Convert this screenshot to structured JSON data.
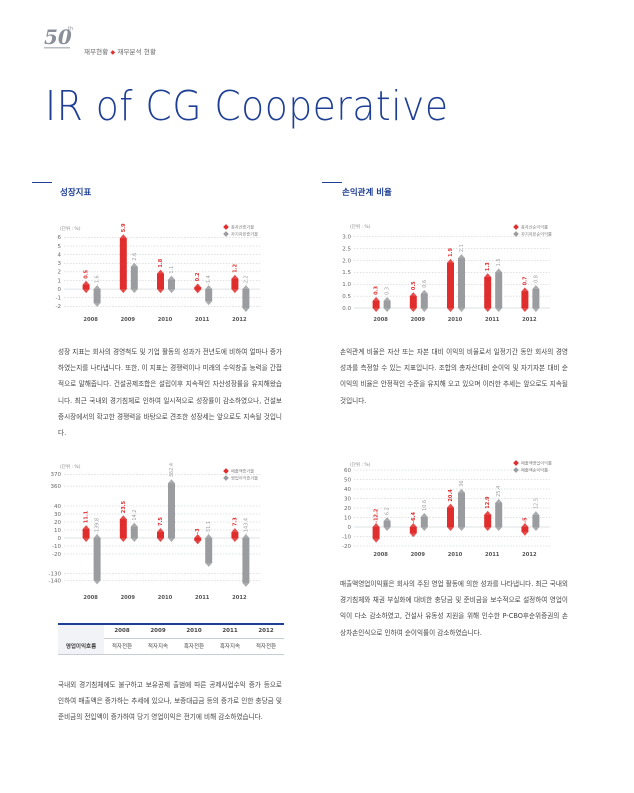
{
  "header": {
    "logo_text": "50th",
    "breadcrumb_left": "재무현황",
    "breadcrumb_right": "재무분석 현황"
  },
  "title": "IR of CG Cooperative",
  "sections": {
    "growth": {
      "title": "성장지표",
      "body": "성장 지표는 회사의 경영척도 및 기업 활동의 성과가 전년도에 비하여 얼마나 증가하였는지를 나타냅니다. 또한, 이 지표는 경쟁력이나 미래의 수익창출 능력을 간접적으로 말해줍니다. 건설공제조합은 설립이후 지속적인 자산성장률을 유지해왔습니다. 최근 국내외 경기침체로 인하여 일시적으로 성장률이 감소하였으나, 건설보증시장에서의 확고한 경쟁력을 바탕으로 견조한 성장세는 앞으로도 지속될 것입니다."
    },
    "profit": {
      "title": "손익관계 비율",
      "body": "손익관계 비율은 자산 또는 자본 대비 이익의 비율로서 일정기간 동안 회사의 경영성과를 측정할 수 있는 지표입니다. 조합의 총자산대비 순이익 및 자기자본 대비 순이익의 비율은 안정적인 수준을 유지해 오고 있으며 이러한 추세는 앞으로도 지속될 것입니다."
    },
    "sales_text": "국내외 경기침체에도 불구하고 보유공제 출범에 따른 공제사업수익 증가 등으로 인하여 매출액은 증가하는 추세에 있으나, 보증대급금 등의 증가로 인한 충당금 및 준비금의 전입액이 증가하여 당기 영업이익은 전기에 비해 감소하였습니다.",
    "margin_text": "매출액영업이익률은 회사의 주된 영업 활동에 의한 성과를 나타냅니다. 최근 국내외 경기침체와 채권 부실화에 대비한 충당금 및 준비금을 보수적으로 설정하여 영업이익이 다소 감소하였고, 건설사 유동성 지원을 위해 인수한 P-CBO후순위증권의 손상차손인식으로 인하여 순이익률이 감소하였습니다."
  },
  "op_table": {
    "row_label": "영업이익호름",
    "years": [
      "2008",
      "2009",
      "2010",
      "2011",
      "2012"
    ],
    "values": [
      "적자전환",
      "적자지속",
      "흑자전환",
      "흑자지속",
      "적자전환"
    ]
  },
  "colors": {
    "red": "#e02d2d",
    "gray": "#9a9c9f",
    "blue": "#1f3f95"
  },
  "chart_data": [
    {
      "type": "bar",
      "id": "growth",
      "title": "",
      "unit": "(단위 : %)",
      "categories": [
        "2008",
        "2009",
        "2010",
        "2011",
        "2012"
      ],
      "series": [
        {
          "name": "총자산증가율",
          "values": [
            0.5,
            5.9,
            1.8,
            0.2,
            1.2
          ]
        },
        {
          "name": "자기자본증가율",
          "values": [
            -1.6,
            2.6,
            1.1,
            -1.4,
            -2.2
          ]
        }
      ],
      "yticks": [
        6,
        5,
        4,
        3,
        2,
        1,
        0,
        -1,
        -2
      ],
      "ylim": [
        -2.2,
        6.4
      ]
    },
    {
      "type": "bar",
      "id": "profit",
      "title": "",
      "unit": "(단위 : %)",
      "categories": [
        "2008",
        "2009",
        "2010",
        "2011",
        "2012"
      ],
      "series": [
        {
          "name": "총자산순이익률",
          "values": [
            0.3,
            0.5,
            1.9,
            1.3,
            0.7
          ]
        },
        {
          "name": "자기자본순이익률",
          "values": [
            0.3,
            0.6,
            2.1,
            1.5,
            0.8
          ]
        }
      ],
      "yticks": [
        "3.0",
        "2.5",
        "2.0",
        "1.5",
        "1.0",
        "0.5",
        "0.0"
      ],
      "ylim": [
        0,
        3.2
      ]
    },
    {
      "type": "bar",
      "id": "sales",
      "title": "",
      "unit": "(단위 : %)",
      "categories": [
        "2008",
        "2009",
        "2010",
        "2011",
        "2012"
      ],
      "series": [
        {
          "name": "매출액증가율",
          "values": [
            11.1,
            23.5,
            7.5,
            -3.0,
            7.3
          ]
        },
        {
          "name": "영업이익증가율",
          "values": [
            -139.8,
            14.2,
            362.4,
            -31.1,
            -143.4
          ]
        }
      ],
      "yticks": [
        "370",
        "360",
        "40",
        "30",
        "20",
        "10",
        "0",
        "-10",
        "-20",
        "-130",
        "-140"
      ],
      "ylim": [
        -145,
        372
      ]
    },
    {
      "type": "bar",
      "id": "margin",
      "title": "",
      "unit": "(단위 : %)",
      "categories": [
        "2008",
        "2009",
        "2010",
        "2011",
        "2012"
      ],
      "series": [
        {
          "name": "매출액영업이익률",
          "values": [
            -12.2,
            -6.4,
            20.4,
            12.9,
            -5.0
          ]
        },
        {
          "name": "매출액순이익률",
          "values": [
            6.2,
            10.6,
            36.0,
            25.4,
            12.5
          ]
        }
      ],
      "yticks": [
        "60",
        "50",
        "40",
        "30",
        "20",
        "10",
        "0",
        "-10",
        "-20"
      ],
      "ylim": [
        -20,
        60
      ]
    }
  ]
}
